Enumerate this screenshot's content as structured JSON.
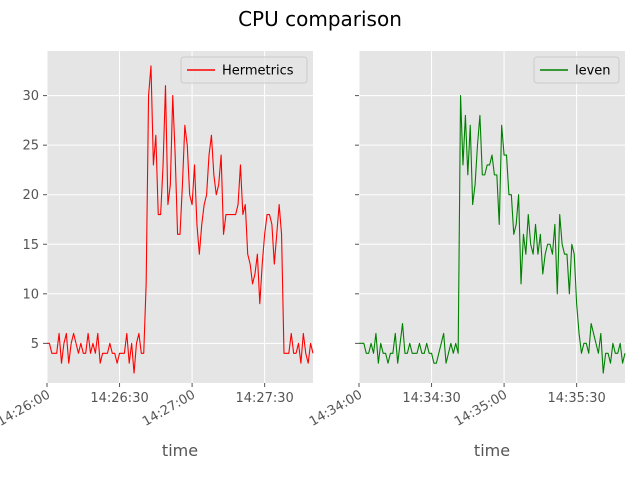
{
  "figure": {
    "title": "CPU comparison"
  },
  "chart_data": [
    {
      "type": "line",
      "xlabel": "time",
      "ylabel": "",
      "ylim": [
        1,
        34.5
      ],
      "yticks": [
        5,
        10,
        15,
        20,
        25,
        30
      ],
      "xlim": [
        "14:26:00",
        "14:27:50"
      ],
      "xticks": [
        {
          "t": "14:26:00",
          "label": "14:26:00",
          "rotated": true
        },
        {
          "t": "14:26:30",
          "label": "14:26:30",
          "rotated": false
        },
        {
          "t": "14:27:00",
          "label": "14:27:00",
          "rotated": true
        },
        {
          "t": "14:27:30",
          "label": "14:27:30",
          "rotated": false
        }
      ],
      "grid": true,
      "legend_position": "upper right",
      "series": [
        {
          "name": "Hermetrics",
          "color": "#ff0000",
          "x": [
            "14:26:00",
            "14:26:01",
            "14:26:02",
            "14:26:03",
            "14:26:04",
            "14:26:05",
            "14:26:06",
            "14:26:07",
            "14:26:08",
            "14:26:09",
            "14:26:10",
            "14:26:11",
            "14:26:12",
            "14:26:13",
            "14:26:14",
            "14:26:15",
            "14:26:16",
            "14:26:17",
            "14:26:18",
            "14:26:19",
            "14:26:20",
            "14:26:21",
            "14:26:22",
            "14:26:23",
            "14:26:24",
            "14:26:25",
            "14:26:26",
            "14:26:27",
            "14:26:28",
            "14:26:29",
            "14:26:30",
            "14:26:31",
            "14:26:32",
            "14:26:33",
            "14:26:34",
            "14:26:35",
            "14:26:36",
            "14:26:37",
            "14:26:38",
            "14:26:39",
            "14:26:40",
            "14:26:41",
            "14:26:42",
            "14:26:43",
            "14:26:44",
            "14:26:45",
            "14:26:46",
            "14:26:47",
            "14:26:48",
            "14:26:49",
            "14:26:50",
            "14:26:51",
            "14:26:52",
            "14:26:53",
            "14:26:54",
            "14:26:55",
            "14:26:56",
            "14:26:57",
            "14:26:58",
            "14:26:59",
            "14:27:00",
            "14:27:01",
            "14:27:02",
            "14:27:03",
            "14:27:04",
            "14:27:05",
            "14:27:06",
            "14:27:07",
            "14:27:08",
            "14:27:09",
            "14:27:10",
            "14:27:11",
            "14:27:12",
            "14:27:13",
            "14:27:14",
            "14:27:15",
            "14:27:16",
            "14:27:17",
            "14:27:18",
            "14:27:19",
            "14:27:20",
            "14:27:21",
            "14:27:22",
            "14:27:23",
            "14:27:24",
            "14:27:25",
            "14:27:26",
            "14:27:27",
            "14:27:28",
            "14:27:29",
            "14:27:30",
            "14:27:31",
            "14:27:32",
            "14:27:33",
            "14:27:34",
            "14:27:35",
            "14:27:36",
            "14:27:37",
            "14:27:38",
            "14:27:39",
            "14:27:40",
            "14:27:41",
            "14:27:42",
            "14:27:43",
            "14:27:44",
            "14:27:45",
            "14:27:46",
            "14:27:47",
            "14:27:48",
            "14:27:49",
            "14:27:50"
          ],
          "values": [
            5,
            5,
            4,
            4,
            4,
            6,
            3,
            5,
            6,
            3,
            5,
            6,
            5,
            4,
            5,
            4,
            4,
            6,
            4,
            5,
            4,
            6,
            3,
            4,
            4,
            4,
            5,
            4,
            4,
            3,
            4,
            4,
            4,
            6,
            3,
            5,
            2,
            5,
            6,
            4,
            4,
            11,
            30,
            33,
            23,
            26,
            18,
            18,
            23,
            31,
            19,
            21,
            30,
            24,
            16,
            16,
            21,
            27,
            25,
            20,
            19,
            23,
            17,
            14,
            17,
            19,
            20,
            24,
            26,
            22,
            20,
            21,
            24,
            16,
            18,
            18,
            18,
            18,
            18,
            19,
            23,
            18,
            19,
            14,
            13,
            11,
            12,
            14,
            9,
            13,
            16,
            18,
            18,
            17,
            13,
            16,
            19,
            16,
            4,
            4,
            4,
            6,
            4,
            4,
            5,
            3,
            6,
            4,
            3,
            5,
            4
          ],
          "data_points_note": "values sampled every 1 second from 14:26:00 to 14:27:50"
        }
      ]
    },
    {
      "type": "line",
      "xlabel": "time",
      "ylabel": "",
      "ylim": [
        1,
        34.5
      ],
      "yticks": [
        5,
        10,
        15,
        20,
        25,
        30
      ],
      "xlim": [
        "14:34:00",
        "14:35:50"
      ],
      "xticks": [
        {
          "t": "14:34:00",
          "label": "14:34:00",
          "rotated": true
        },
        {
          "t": "14:34:30",
          "label": "14:34:30",
          "rotated": false
        },
        {
          "t": "14:35:00",
          "label": "14:35:00",
          "rotated": true
        },
        {
          "t": "14:35:30",
          "label": "14:35:30",
          "rotated": false
        }
      ],
      "grid": true,
      "legend_position": "upper right",
      "series": [
        {
          "name": "leven",
          "color": "#008000",
          "x": [
            "14:34:00",
            "14:34:01",
            "14:34:02",
            "14:34:03",
            "14:34:04",
            "14:34:05",
            "14:34:06",
            "14:34:07",
            "14:34:08",
            "14:34:09",
            "14:34:10",
            "14:34:11",
            "14:34:12",
            "14:34:13",
            "14:34:14",
            "14:34:15",
            "14:34:16",
            "14:34:17",
            "14:34:18",
            "14:34:19",
            "14:34:20",
            "14:34:21",
            "14:34:22",
            "14:34:23",
            "14:34:24",
            "14:34:25",
            "14:34:26",
            "14:34:27",
            "14:34:28",
            "14:34:29",
            "14:34:30",
            "14:34:31",
            "14:34:32",
            "14:34:33",
            "14:34:34",
            "14:34:35",
            "14:34:36",
            "14:34:37",
            "14:34:38",
            "14:34:39",
            "14:34:40",
            "14:34:41",
            "14:34:42",
            "14:34:43",
            "14:34:44",
            "14:34:45",
            "14:34:46",
            "14:34:47",
            "14:34:48",
            "14:34:49",
            "14:34:50",
            "14:34:51",
            "14:34:52",
            "14:34:53",
            "14:34:54",
            "14:34:55",
            "14:34:56",
            "14:34:57",
            "14:34:58",
            "14:34:59",
            "14:35:00",
            "14:35:01",
            "14:35:02",
            "14:35:03",
            "14:35:04",
            "14:35:05",
            "14:35:06",
            "14:35:07",
            "14:35:08",
            "14:35:09",
            "14:35:10",
            "14:35:11",
            "14:35:12",
            "14:35:13",
            "14:35:14",
            "14:35:15",
            "14:35:16",
            "14:35:17",
            "14:35:18",
            "14:35:19",
            "14:35:20",
            "14:35:21",
            "14:35:22",
            "14:35:23",
            "14:35:24",
            "14:35:25",
            "14:35:26",
            "14:35:27",
            "14:35:28",
            "14:35:29",
            "14:35:30",
            "14:35:31",
            "14:35:32",
            "14:35:33",
            "14:35:34",
            "14:35:35",
            "14:35:36",
            "14:35:37",
            "14:35:38",
            "14:35:39",
            "14:35:40",
            "14:35:41",
            "14:35:42",
            "14:35:43",
            "14:35:44",
            "14:35:45",
            "14:35:46",
            "14:35:47",
            "14:35:48",
            "14:35:49",
            "14:35:50"
          ],
          "values": [
            5,
            5,
            5,
            4,
            4,
            5,
            4,
            6,
            3,
            5,
            4,
            4,
            3,
            4,
            4,
            6,
            3,
            5,
            7,
            4,
            4,
            5,
            4,
            4,
            4,
            5,
            4,
            4,
            5,
            4,
            4,
            3,
            3,
            4,
            5,
            6,
            3,
            4,
            5,
            4,
            5,
            4,
            30,
            23,
            28,
            22,
            27,
            19,
            21,
            25,
            28,
            22,
            22,
            23,
            23,
            24,
            22,
            22,
            17,
            27,
            24,
            24,
            20,
            20,
            16,
            17,
            20,
            11,
            16,
            14,
            18,
            15,
            14,
            17,
            14,
            16,
            12,
            14,
            15,
            15,
            14,
            17,
            10,
            18,
            15,
            14,
            14,
            10,
            15,
            14,
            9,
            6,
            4,
            5,
            5,
            4,
            7,
            6,
            5,
            4,
            6,
            2,
            4,
            4,
            3,
            5,
            4,
            4,
            5,
            3,
            4
          ],
          "data_points_note": "values sampled every 1 second from 14:34:00 to 14:35:50"
        }
      ]
    }
  ]
}
